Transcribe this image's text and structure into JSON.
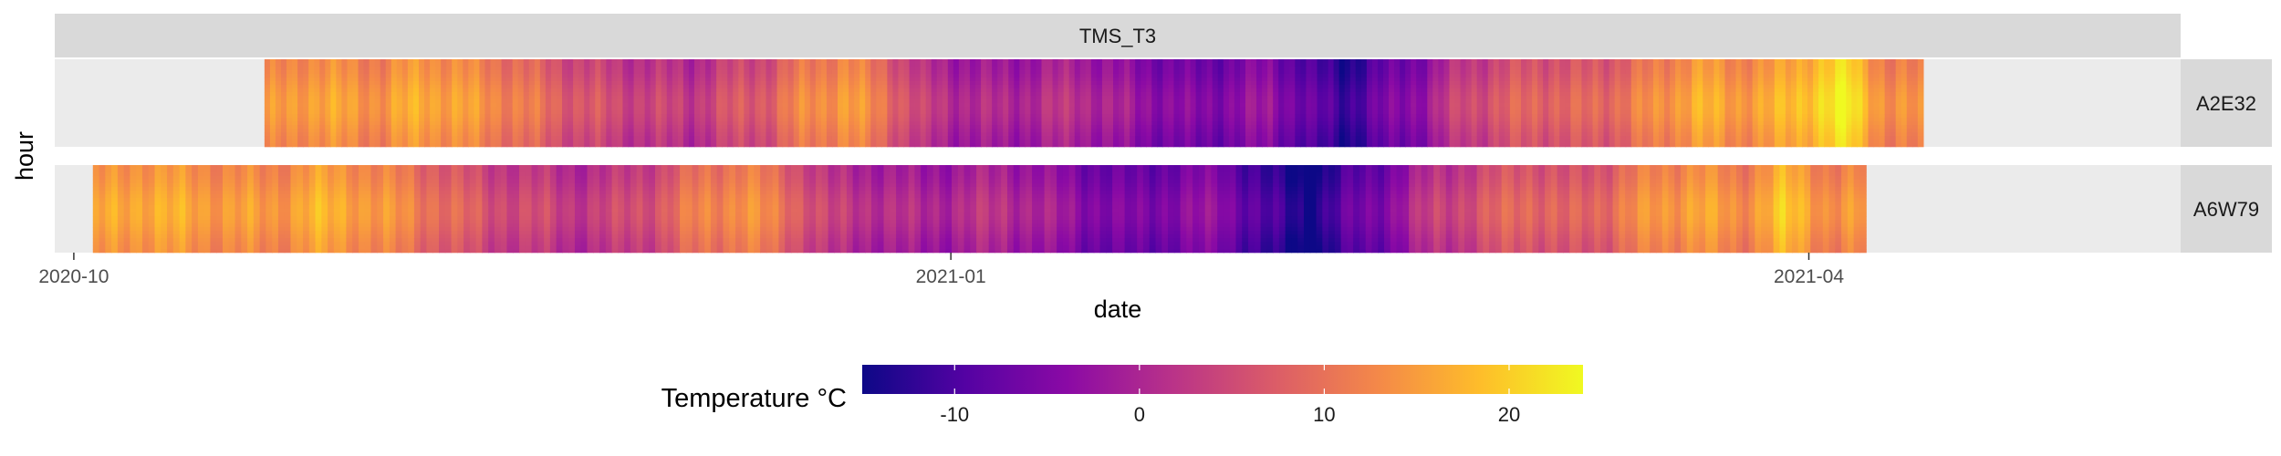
{
  "chart_data": {
    "type": "heatmap",
    "facet_title": "TMS_T3",
    "xlabel": "date",
    "ylabel": "hour",
    "x_ticks": [
      "2020-10",
      "2021-01",
      "2021-04"
    ],
    "x_range": [
      "2020-09-29",
      "2021-05-10"
    ],
    "panels": [
      {
        "label": "A2E32",
        "start": "2020-10-21",
        "end": "2021-04-13",
        "weekly_mean_temperature": [
          12,
          15,
          14,
          13,
          16,
          14,
          12,
          9,
          6,
          4,
          3,
          2,
          5,
          7,
          12,
          14,
          10,
          2,
          0,
          -1,
          0,
          1,
          -2,
          -4,
          -6,
          -5,
          -3,
          -9,
          -12,
          -7,
          -3,
          4,
          6,
          8,
          7,
          9,
          12,
          16,
          14,
          15,
          19,
          22,
          12
        ]
      },
      {
        "label": "A6W79",
        "start": "2020-10-03",
        "end": "2021-04-07",
        "weekly_mean_temperature": [
          14,
          16,
          15,
          14,
          13,
          16,
          15,
          12,
          9,
          5,
          4,
          2,
          3,
          6,
          11,
          13,
          9,
          2,
          1,
          -1,
          0,
          1,
          -2,
          -5,
          -7,
          -5,
          -4,
          -11,
          -15,
          -9,
          -4,
          3,
          5,
          9,
          6,
          9,
          13,
          15,
          12,
          18,
          13
        ]
      }
    ],
    "legend": {
      "title": "Temperature °C",
      "ticks": [
        -10,
        0,
        10,
        20
      ],
      "range": [
        -15,
        24
      ],
      "palette": "plasma",
      "colors": [
        "#0d0887",
        "#5402a3",
        "#8b0aa5",
        "#b93289",
        "#db5c68",
        "#f48849",
        "#febd2a",
        "#f0f921"
      ]
    },
    "panel_background": "#ebebeb",
    "strip_background": "#d9d9d9",
    "grid": false
  }
}
